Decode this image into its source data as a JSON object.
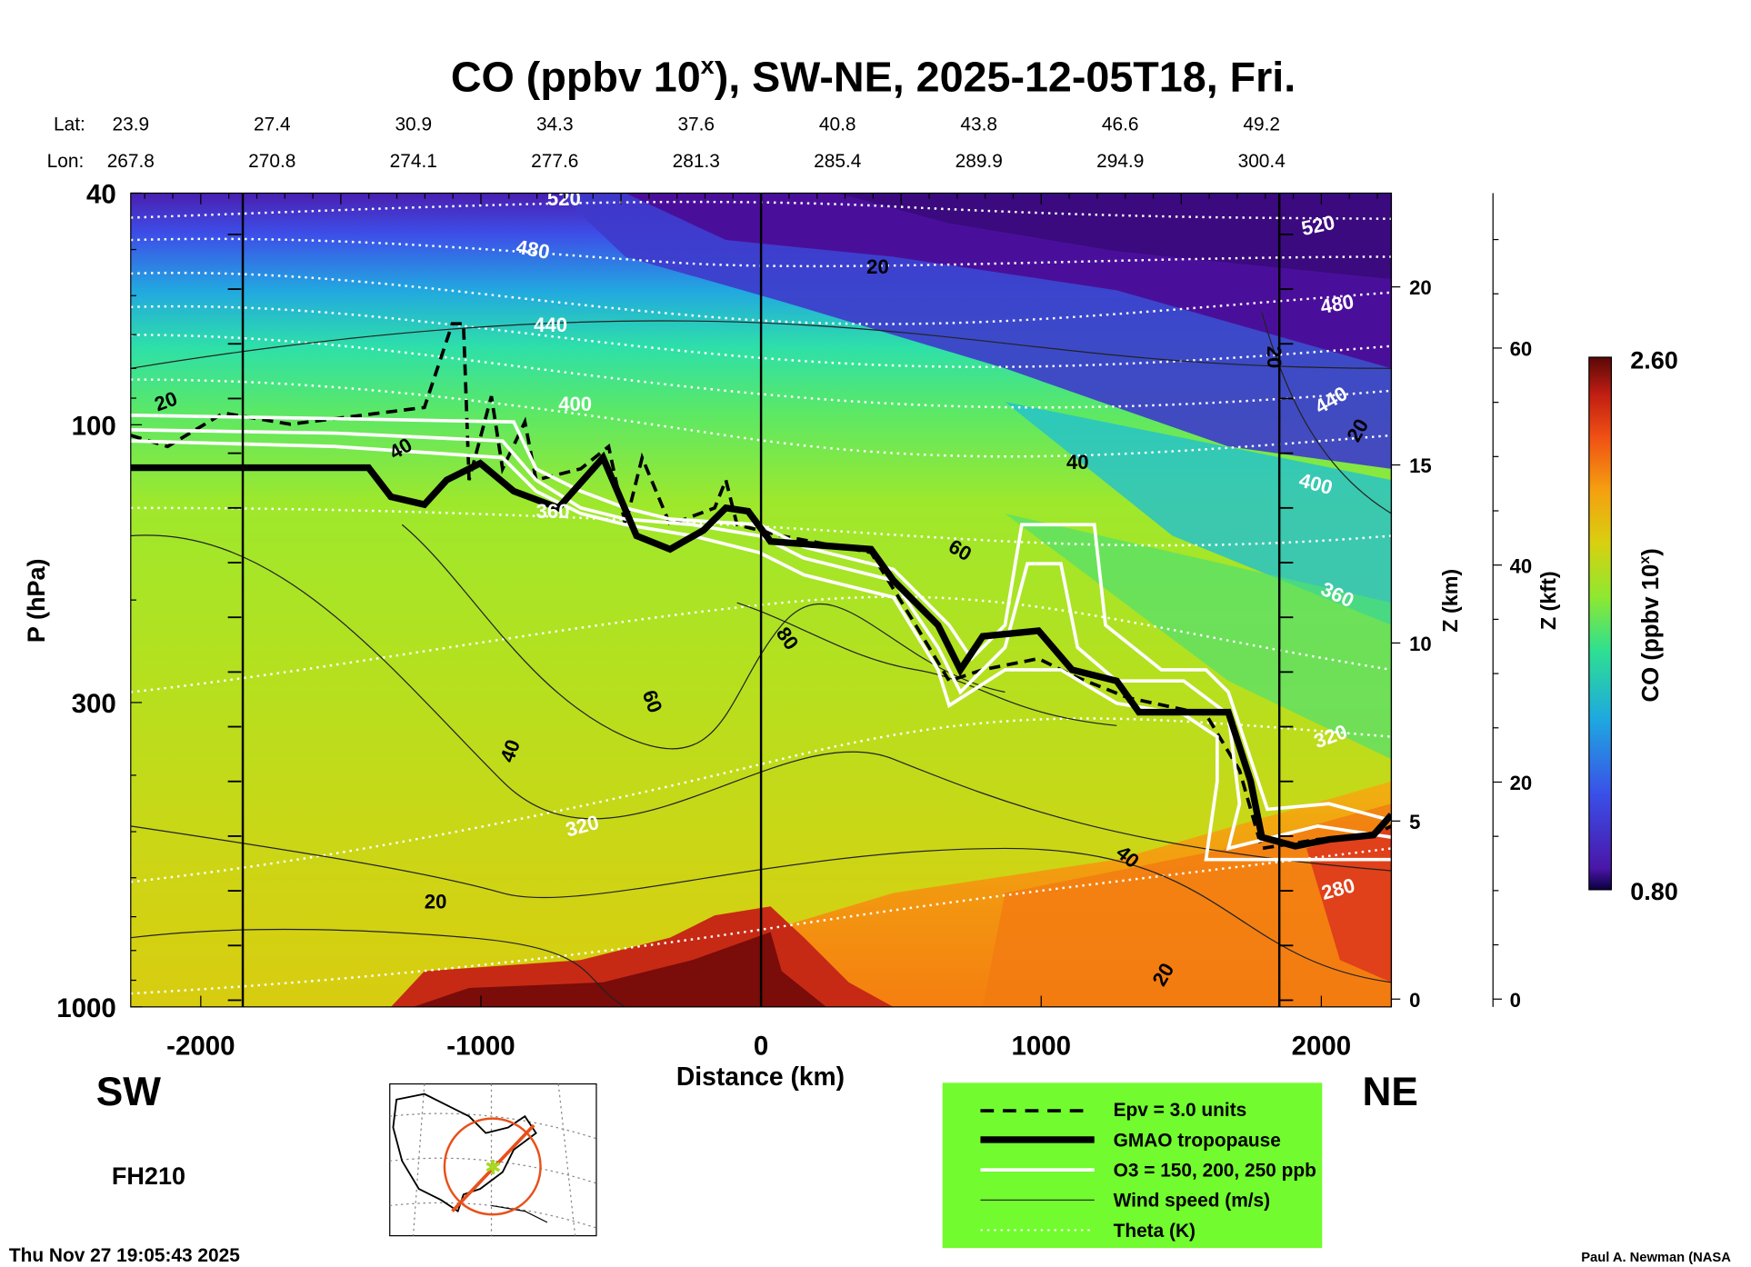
{
  "chart_data": {
    "type": "heatmap",
    "title": "CO (ppbv 10",
    "title_sup": "x",
    "title_rest": "), SW-NE, 2025-12-05T18, Fri.",
    "xlabel": "Distance (km)",
    "ylabel": "P (hPa)",
    "xlim": [
      -2250,
      2250
    ],
    "ylim": [
      1000,
      40
    ],
    "yscale": "log",
    "x_ticks": [
      {
        "value": -2000,
        "label": "-2000"
      },
      {
        "value": -1000,
        "label": "-1000"
      },
      {
        "value": 0,
        "label": "0"
      },
      {
        "value": 1000,
        "label": "1000"
      },
      {
        "value": 2000,
        "label": "2000"
      }
    ],
    "y_ticks": [
      {
        "value": 40,
        "label": "40"
      },
      {
        "value": 100,
        "label": "100"
      },
      {
        "value": 300,
        "label": "300"
      },
      {
        "value": 1000,
        "label": "1000"
      }
    ],
    "z_km_axis": {
      "label": "Z (km)",
      "ticks": [
        {
          "value": 20,
          "label": "20"
        },
        {
          "value": 15,
          "label": "15"
        },
        {
          "value": 10,
          "label": "10"
        },
        {
          "value": 5,
          "label": "5"
        },
        {
          "value": 0,
          "label": "0"
        }
      ]
    },
    "z_kft_axis": {
      "label": "Z (kft)",
      "ticks": [
        {
          "value": 60,
          "label": "60"
        },
        {
          "value": 40,
          "label": "40"
        },
        {
          "value": 20,
          "label": "20"
        },
        {
          "value": 0,
          "label": "0"
        }
      ]
    },
    "lat_label": "Lat:",
    "lon_label": "Lon:",
    "lat": [
      "23.9",
      "27.4",
      "30.9",
      "34.3",
      "37.6",
      "40.8",
      "43.8",
      "46.6",
      "49.2"
    ],
    "lon": [
      "267.8",
      "270.8",
      "274.1",
      "277.6",
      "281.3",
      "285.4",
      "289.9",
      "294.9",
      "300.4"
    ],
    "markers_km": [
      -1850,
      0,
      1850
    ],
    "colorbar": {
      "label": "CO (ppbv 10",
      "label_sup": "x",
      "label_end": ")",
      "min": 0.8,
      "max": 2.6,
      "min_label": "0.80",
      "max_label": "2.60"
    },
    "theta_labels": [
      "520",
      "480",
      "440",
      "400",
      "360",
      "320",
      "280"
    ],
    "wind_labels": [
      "20",
      "40",
      "60",
      "80"
    ],
    "legend": [
      {
        "style": "dashed",
        "label": "Epv = 3.0 units"
      },
      {
        "style": "thick",
        "label": "GMAO tropopause"
      },
      {
        "style": "white",
        "label": "O3 = 150, 200, 250 ppb"
      },
      {
        "style": "thin",
        "label": "Wind speed (m/s)"
      },
      {
        "style": "dotted",
        "label": "Theta (K)"
      }
    ],
    "legend_color": "#72fb2f"
  },
  "labels": {
    "sw": "SW",
    "ne": "NE",
    "forecast_hour": "FH210",
    "timestamp": "Thu Nov 27 19:05:43 2025",
    "credit": "Paul A. Newman (NASA"
  }
}
